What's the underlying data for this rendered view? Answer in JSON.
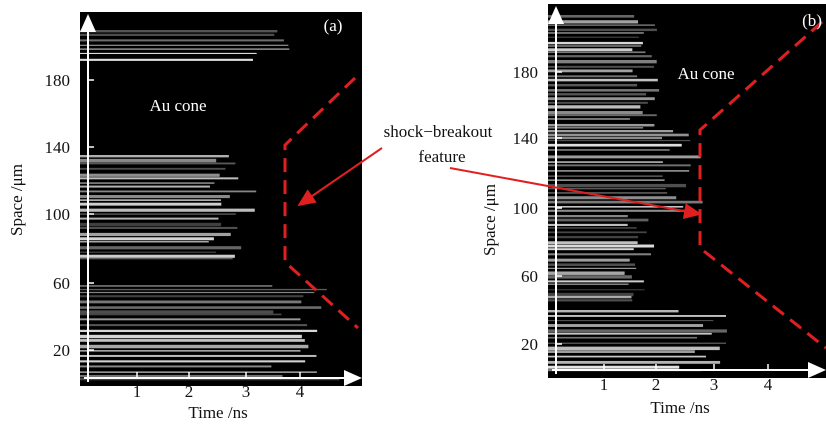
{
  "panels": [
    {
      "label": "(a)",
      "annotation": "Au cone",
      "x_axis": {
        "title": "Time /ns",
        "ticks": [
          1,
          2,
          3,
          4
        ]
      },
      "y_axis": {
        "title": "Space /μm",
        "ticks": [
          20,
          60,
          100,
          140,
          180
        ]
      }
    },
    {
      "label": "(b)",
      "annotation": "Au cone",
      "x_axis": {
        "title": "Time /ns",
        "ticks": [
          1,
          2,
          3,
          4
        ]
      },
      "y_axis": {
        "title": "Space /μm",
        "ticks": [
          20,
          60,
          100,
          140,
          180
        ]
      }
    }
  ],
  "callout": {
    "lines": [
      "shock−breakout",
      "feature"
    ]
  }
}
